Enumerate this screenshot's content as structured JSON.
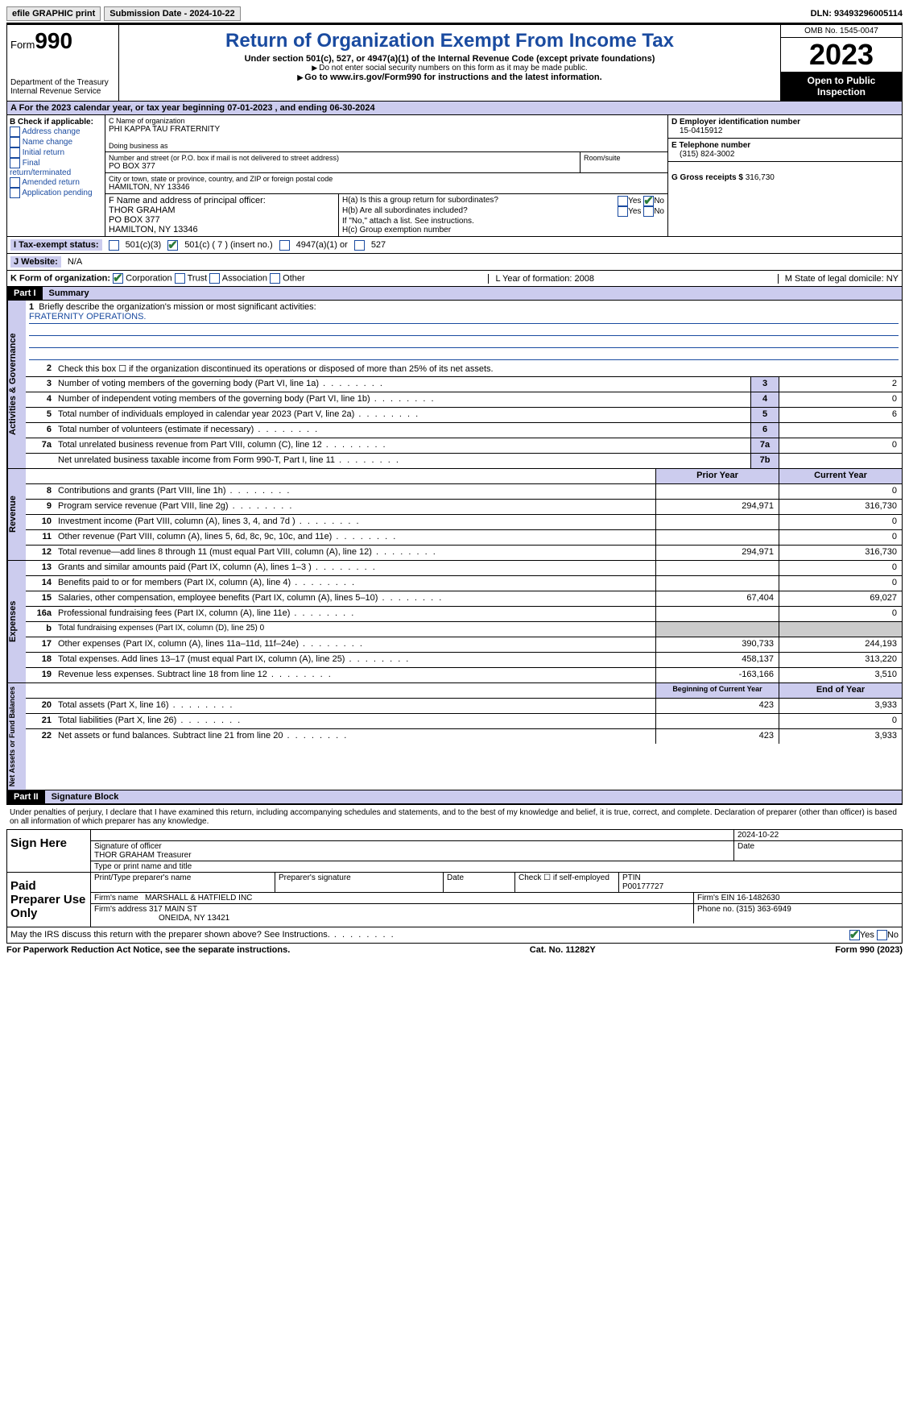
{
  "topbar": {
    "efile": "efile GRAPHIC print",
    "submission": "Submission Date - 2024-10-22",
    "dln": "DLN: 93493296005114"
  },
  "header": {
    "form_label": "Form",
    "form_num": "990",
    "dept": "Department of the Treasury\nInternal Revenue Service",
    "title": "Return of Organization Exempt From Income Tax",
    "subtitle": "Under section 501(c), 527, or 4947(a)(1) of the Internal Revenue Code (except private foundations)",
    "ssn_note": "Do not enter social security numbers on this form as it may be made public.",
    "goto": "Go to www.irs.gov/Form990 for instructions and the latest information.",
    "omb": "OMB No. 1545-0047",
    "year": "2023",
    "inspect": "Open to Public Inspection"
  },
  "period": "A For the 2023 calendar year, or tax year beginning 07-01-2023   , and ending 06-30-2024",
  "box_b": {
    "label": "B Check if applicable:",
    "opts": [
      "Address change",
      "Name change",
      "Initial return",
      "Final return/terminated",
      "Amended return",
      "Application pending"
    ]
  },
  "box_c": {
    "name_lbl": "C Name of organization",
    "name": "PHI KAPPA TAU FRATERNITY",
    "dba_lbl": "Doing business as",
    "addr_lbl": "Number and street (or P.O. box if mail is not delivered to street address)",
    "room_lbl": "Room/suite",
    "addr": "PO BOX 377",
    "city_lbl": "City or town, state or province, country, and ZIP or foreign postal code",
    "city": "HAMILTON, NY  13346"
  },
  "box_d": {
    "lbl": "D Employer identification number",
    "val": "15-0415912"
  },
  "box_e": {
    "lbl": "E Telephone number",
    "val": "(315) 824-3002"
  },
  "box_g": {
    "lbl": "G Gross receipts $",
    "val": "316,730"
  },
  "box_f": {
    "lbl": "F  Name and address of principal officer:",
    "name": "THOR GRAHAM",
    "addr1": "PO BOX 377",
    "addr2": "HAMILTON, NY  13346"
  },
  "box_h": {
    "a": "H(a)  Is this a group return for subordinates?",
    "b": "H(b)  Are all subordinates included?",
    "b_note": "If \"No,\" attach a list. See instructions.",
    "c": "H(c)  Group exemption number"
  },
  "status": {
    "lbl": "I   Tax-exempt status:",
    "o1": "501(c)(3)",
    "o2": "501(c) ( 7 ) (insert no.)",
    "o3": "4947(a)(1) or",
    "o4": "527"
  },
  "website": {
    "lbl": "J   Website:",
    "val": "N/A"
  },
  "box_k": {
    "lbl": "K Form of organization:",
    "opts": [
      "Corporation",
      "Trust",
      "Association",
      "Other"
    ]
  },
  "box_l": "L Year of formation: 2008",
  "box_m": "M State of legal domicile: NY",
  "part1": {
    "hdr": "Part I",
    "title": "Summary"
  },
  "mission": {
    "lbl": "Briefly describe the organization's mission or most significant activities:",
    "val": "FRATERNITY OPERATIONS."
  },
  "gov_lines": [
    {
      "n": "2",
      "t": "Check this box ☐ if the organization discontinued its operations or disposed of more than 25% of its net assets."
    },
    {
      "n": "3",
      "t": "Number of voting members of the governing body (Part VI, line 1a)",
      "b": "3",
      "v": "2"
    },
    {
      "n": "4",
      "t": "Number of independent voting members of the governing body (Part VI, line 1b)",
      "b": "4",
      "v": "0"
    },
    {
      "n": "5",
      "t": "Total number of individuals employed in calendar year 2023 (Part V, line 2a)",
      "b": "5",
      "v": "6"
    },
    {
      "n": "6",
      "t": "Total number of volunteers (estimate if necessary)",
      "b": "6",
      "v": ""
    },
    {
      "n": "7a",
      "t": "Total unrelated business revenue from Part VIII, column (C), line 12",
      "b": "7a",
      "v": "0"
    },
    {
      "n": "",
      "t": "Net unrelated business taxable income from Form 990-T, Part I, line 11",
      "b": "7b",
      "v": ""
    }
  ],
  "rev_hdr": {
    "py": "Prior Year",
    "cy": "Current Year"
  },
  "rev_lines": [
    {
      "n": "8",
      "t": "Contributions and grants (Part VIII, line 1h)",
      "py": "",
      "cy": "0"
    },
    {
      "n": "9",
      "t": "Program service revenue (Part VIII, line 2g)",
      "py": "294,971",
      "cy": "316,730"
    },
    {
      "n": "10",
      "t": "Investment income (Part VIII, column (A), lines 3, 4, and 7d )",
      "py": "",
      "cy": "0"
    },
    {
      "n": "11",
      "t": "Other revenue (Part VIII, column (A), lines 5, 6d, 8c, 9c, 10c, and 11e)",
      "py": "",
      "cy": "0"
    },
    {
      "n": "12",
      "t": "Total revenue—add lines 8 through 11 (must equal Part VIII, column (A), line 12)",
      "py": "294,971",
      "cy": "316,730"
    }
  ],
  "exp_lines": [
    {
      "n": "13",
      "t": "Grants and similar amounts paid (Part IX, column (A), lines 1–3 )",
      "py": "",
      "cy": "0"
    },
    {
      "n": "14",
      "t": "Benefits paid to or for members (Part IX, column (A), line 4)",
      "py": "",
      "cy": "0"
    },
    {
      "n": "15",
      "t": "Salaries, other compensation, employee benefits (Part IX, column (A), lines 5–10)",
      "py": "67,404",
      "cy": "69,027"
    },
    {
      "n": "16a",
      "t": "Professional fundraising fees (Part IX, column (A), line 11e)",
      "py": "",
      "cy": "0"
    },
    {
      "n": "b",
      "t": "Total fundraising expenses (Part IX, column (D), line 25) 0",
      "shade": true
    },
    {
      "n": "17",
      "t": "Other expenses (Part IX, column (A), lines 11a–11d, 11f–24e)",
      "py": "390,733",
      "cy": "244,193"
    },
    {
      "n": "18",
      "t": "Total expenses. Add lines 13–17 (must equal Part IX, column (A), line 25)",
      "py": "458,137",
      "cy": "313,220"
    },
    {
      "n": "19",
      "t": "Revenue less expenses. Subtract line 18 from line 12",
      "py": "-163,166",
      "cy": "3,510"
    }
  ],
  "na_hdr": {
    "py": "Beginning of Current Year",
    "cy": "End of Year"
  },
  "na_lines": [
    {
      "n": "20",
      "t": "Total assets (Part X, line 16)",
      "py": "423",
      "cy": "3,933"
    },
    {
      "n": "21",
      "t": "Total liabilities (Part X, line 26)",
      "py": "",
      "cy": "0"
    },
    {
      "n": "22",
      "t": "Net assets or fund balances. Subtract line 21 from line 20",
      "py": "423",
      "cy": "3,933"
    }
  ],
  "vtabs": {
    "gov": "Activities & Governance",
    "rev": "Revenue",
    "exp": "Expenses",
    "na": "Net Assets or Fund Balances"
  },
  "part2": {
    "hdr": "Part II",
    "title": "Signature Block"
  },
  "decl": "Under penalties of perjury, I declare that I have examined this return, including accompanying schedules and statements, and to the best of my knowledge and belief, it is true, correct, and complete. Declaration of preparer (other than officer) is based on all information of which preparer has any knowledge.",
  "sign": {
    "here": "Sign Here",
    "date": "2024-10-22",
    "sig_lbl": "Signature of officer",
    "officer": "THOR GRAHAM  Treasurer",
    "type_lbl": "Type or print name and title",
    "date_lbl": "Date"
  },
  "paid": {
    "hdr": "Paid Preparer Use Only",
    "name_lbl": "Print/Type preparer's name",
    "sig_lbl": "Preparer's signature",
    "date_lbl": "Date",
    "self": "Check ☐ if self-employed",
    "ptin_lbl": "PTIN",
    "ptin": "P00177727",
    "firm_lbl": "Firm's name",
    "firm": "MARSHALL & HATFIELD INC",
    "ein_lbl": "Firm's EIN",
    "ein": "16-1482630",
    "addr_lbl": "Firm's address",
    "addr1": "317 MAIN ST",
    "addr2": "ONEIDA, NY  13421",
    "phone_lbl": "Phone no.",
    "phone": "(315) 363-6949"
  },
  "discuss": "May the IRS discuss this return with the preparer shown above? See Instructions.",
  "footer": {
    "pra": "For Paperwork Reduction Act Notice, see the separate instructions.",
    "cat": "Cat. No. 11282Y",
    "form": "Form 990 (2023)"
  }
}
